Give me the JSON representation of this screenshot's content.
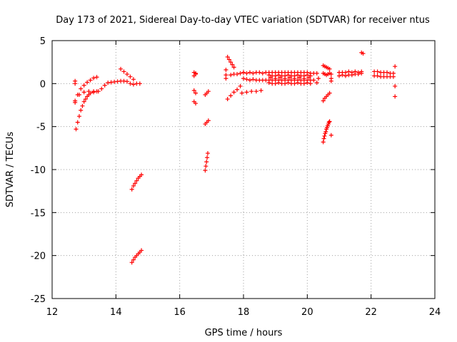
{
  "chart_data": {
    "type": "scatter",
    "title": "Day 173 of 2021, Sidereal Day-to-day VTEC variation (SDTVAR) for receiver ntus",
    "xlabel": "GPS time / hours",
    "ylabel": "SDTVAR / TECUs",
    "xlim": [
      12,
      24
    ],
    "ylim": [
      -25,
      5
    ],
    "xticks": [
      "12",
      "14",
      "16",
      "18",
      "20",
      "22",
      "24"
    ],
    "yticks": [
      "5",
      "0",
      "-5",
      "-10",
      "-15",
      "-20",
      "-25"
    ],
    "grid": true,
    "marker": "plus",
    "color": "#ff0000",
    "segments": [
      {
        "x": [
          12.72,
          12.8,
          12.9,
          13.0,
          13.1,
          13.2,
          13.3,
          13.4
        ],
        "y": [
          -2.2,
          -1.3,
          -0.6,
          -0.2,
          0.15,
          0.4,
          0.65,
          0.75
        ]
      },
      {
        "x": [
          12.72,
          12.85,
          13.0,
          13.15,
          13.3,
          13.45,
          13.55,
          13.65,
          13.75,
          13.85,
          13.95,
          14.05,
          14.15,
          14.25,
          14.35,
          14.45,
          14.55,
          14.65,
          14.75
        ],
        "y": [
          -2.0,
          -1.3,
          -1.0,
          -0.9,
          -0.9,
          -0.9,
          -0.6,
          -0.2,
          0.1,
          0.15,
          0.2,
          0.25,
          0.3,
          0.3,
          0.25,
          0.0,
          -0.1,
          0.0,
          0.0
        ]
      },
      {
        "x": [
          12.75,
          12.8,
          12.85,
          12.9,
          12.95,
          13.0,
          13.05,
          13.1,
          13.15,
          13.2,
          13.3,
          13.4
        ],
        "y": [
          -5.3,
          -4.5,
          -3.8,
          -3.1,
          -2.6,
          -2.1,
          -1.8,
          -1.5,
          -1.3,
          -1.1,
          -1.0,
          -0.9
        ]
      },
      {
        "x": [
          12.72,
          12.72
        ],
        "y": [
          0.3,
          0.0
        ]
      },
      {
        "x": [
          14.15,
          14.25,
          14.35,
          14.45,
          14.55
        ],
        "y": [
          1.7,
          1.4,
          1.1,
          0.8,
          0.5
        ]
      },
      {
        "x": [
          14.5,
          14.55,
          14.6,
          14.65,
          14.7,
          14.75,
          14.8
        ],
        "y": [
          -12.3,
          -11.9,
          -11.6,
          -11.3,
          -11.0,
          -10.8,
          -10.6
        ]
      },
      {
        "x": [
          14.5,
          14.55,
          14.6,
          14.65,
          14.7,
          14.75,
          14.8
        ],
        "y": [
          -20.8,
          -20.5,
          -20.2,
          -20.0,
          -19.8,
          -19.6,
          -19.4
        ]
      },
      {
        "x": [
          16.45,
          16.5,
          16.45,
          16.5
        ],
        "y": [
          1.3,
          1.1,
          0.9,
          1.2
        ]
      },
      {
        "x": [
          16.45,
          16.5,
          16.45,
          16.5
        ],
        "y": [
          -0.8,
          -1.1,
          -2.1,
          -2.3
        ]
      },
      {
        "x": [
          16.8,
          16.85,
          16.9
        ],
        "y": [
          -1.3,
          -1.1,
          -0.9
        ]
      },
      {
        "x": [
          16.8,
          16.85,
          16.9
        ],
        "y": [
          -4.7,
          -4.5,
          -4.3
        ]
      },
      {
        "x": [
          16.8,
          16.82,
          16.84,
          16.86,
          16.88
        ],
        "y": [
          -10.1,
          -9.6,
          -9.1,
          -8.6,
          -8.1
        ]
      },
      {
        "x": [
          17.45,
          17.45,
          17.45
        ],
        "y": [
          1.6,
          1.0,
          0.6
        ]
      },
      {
        "x": [
          17.5,
          17.55,
          17.6,
          17.65,
          17.7
        ],
        "y": [
          3.1,
          2.8,
          2.5,
          2.2,
          1.9
        ]
      },
      {
        "x": [
          17.5,
          17.6,
          17.7,
          17.8,
          17.9
        ],
        "y": [
          -1.8,
          -1.4,
          -1.0,
          -0.7,
          -0.3
        ]
      },
      {
        "x": [
          17.6,
          17.7,
          17.8,
          17.9,
          18.0
        ],
        "y": [
          1.0,
          1.1,
          1.1,
          1.2,
          1.3
        ]
      },
      {
        "x": [
          17.95,
          18.1,
          18.25,
          18.4,
          18.55
        ],
        "y": [
          -1.1,
          -1.0,
          -0.9,
          -0.9,
          -0.8
        ]
      },
      {
        "x": [
          18.0,
          18.1,
          18.2,
          18.3,
          18.4,
          18.5,
          18.6,
          18.7,
          18.8,
          18.9,
          19.0,
          19.1,
          19.2,
          19.3,
          19.4,
          19.5,
          19.6,
          19.7,
          19.8,
          19.9,
          20.0,
          20.1,
          20.2
        ],
        "y": [
          1.3,
          1.2,
          1.3,
          1.2,
          1.3,
          1.3,
          1.2,
          1.3,
          1.3,
          1.3,
          1.3,
          1.3,
          1.3,
          1.3,
          1.3,
          1.3,
          1.3,
          1.3,
          1.3,
          1.3,
          1.3,
          1.2,
          1.2
        ]
      },
      {
        "x": [
          18.0,
          18.1,
          18.2,
          18.3,
          18.4,
          18.5,
          18.6,
          18.7,
          18.8,
          18.9,
          19.0,
          19.1,
          19.2,
          19.3,
          19.4,
          19.5,
          19.6,
          19.7,
          19.8,
          19.9,
          20.0,
          20.1,
          20.2
        ],
        "y": [
          0.6,
          0.5,
          0.4,
          0.5,
          0.4,
          0.4,
          0.4,
          0.4,
          0.4,
          0.4,
          0.4,
          0.4,
          0.4,
          0.4,
          0.4,
          0.4,
          0.4,
          0.4,
          0.4,
          0.4,
          0.4,
          0.4,
          0.4
        ]
      },
      {
        "x": [
          18.8,
          18.9,
          19.0,
          19.1,
          19.2,
          19.3,
          19.4,
          19.5,
          19.6,
          19.7,
          19.8,
          19.9,
          20.0,
          20.1
        ],
        "y": [
          1.0,
          0.9,
          0.9,
          1.0,
          0.9,
          0.9,
          1.0,
          0.9,
          0.9,
          1.0,
          0.9,
          0.9,
          1.0,
          0.9
        ]
      },
      {
        "x": [
          18.8,
          18.9,
          19.0,
          19.1,
          19.2,
          19.3,
          19.4,
          19.5,
          19.6,
          19.7,
          19.8,
          19.9,
          20.0,
          20.1
        ],
        "y": [
          0.1,
          0.0,
          0.0,
          0.1,
          0.0,
          0.0,
          0.1,
          0.0,
          0.0,
          0.1,
          0.0,
          0.0,
          0.1,
          0.0
        ]
      },
      {
        "x": [
          18.85,
          19.0,
          19.15,
          19.3,
          19.45,
          19.6,
          19.75,
          19.9,
          20.05
        ],
        "y": [
          0.7,
          0.6,
          0.7,
          0.6,
          0.7,
          0.6,
          0.7,
          0.6,
          0.7
        ]
      },
      {
        "x": [
          20.3,
          20.35,
          20.3
        ],
        "y": [
          0.1,
          0.6,
          1.2
        ]
      },
      {
        "x": [
          20.5,
          20.55,
          20.6,
          20.65,
          20.7
        ],
        "y": [
          2.1,
          2.0,
          1.9,
          1.8,
          1.7
        ]
      },
      {
        "x": [
          20.5,
          20.55,
          20.6,
          20.65,
          20.7,
          20.75
        ],
        "y": [
          1.2,
          1.1,
          1.0,
          1.1,
          1.2,
          1.1
        ]
      },
      {
        "x": [
          20.75,
          20.75
        ],
        "y": [
          0.6,
          0.3
        ]
      },
      {
        "x": [
          20.5,
          20.55,
          20.6,
          20.65,
          20.7
        ],
        "y": [
          -2.0,
          -1.7,
          -1.5,
          -1.3,
          -1.1
        ]
      },
      {
        "x": [
          20.5,
          20.52,
          20.54,
          20.56,
          20.58,
          20.6,
          20.62,
          20.64,
          20.66,
          20.68,
          20.7
        ],
        "y": [
          -6.8,
          -6.4,
          -6.1,
          -5.8,
          -5.6,
          -5.3,
          -5.1,
          -4.9,
          -4.7,
          -4.5,
          -4.4
        ]
      },
      {
        "x": [
          20.75
        ],
        "y": [
          -6.0
        ]
      },
      {
        "x": [
          21.0,
          21.1,
          21.2,
          21.3,
          21.4,
          21.5,
          21.6,
          21.7
        ],
        "y": [
          0.9,
          1.0,
          0.9,
          1.0,
          1.0,
          1.1,
          1.1,
          1.2
        ]
      },
      {
        "x": [
          21.0,
          21.1,
          21.2,
          21.3,
          21.4,
          21.5,
          21.6,
          21.7
        ],
        "y": [
          1.3,
          1.3,
          1.3,
          1.4,
          1.3,
          1.4,
          1.3,
          1.4
        ]
      },
      {
        "x": [
          21.7,
          21.75
        ],
        "y": [
          3.6,
          3.5
        ]
      },
      {
        "x": [
          22.1,
          22.2,
          22.3,
          22.4,
          22.5,
          22.6,
          22.7
        ],
        "y": [
          1.4,
          1.4,
          1.3,
          1.3,
          1.3,
          1.2,
          1.2
        ]
      },
      {
        "x": [
          22.1,
          22.2,
          22.3,
          22.4,
          22.5,
          22.6,
          22.7
        ],
        "y": [
          0.9,
          0.9,
          0.8,
          0.8,
          0.8,
          0.8,
          0.8
        ]
      },
      {
        "x": [
          22.75,
          22.75,
          22.75
        ],
        "y": [
          2.0,
          -0.3,
          -1.5
        ]
      }
    ]
  }
}
